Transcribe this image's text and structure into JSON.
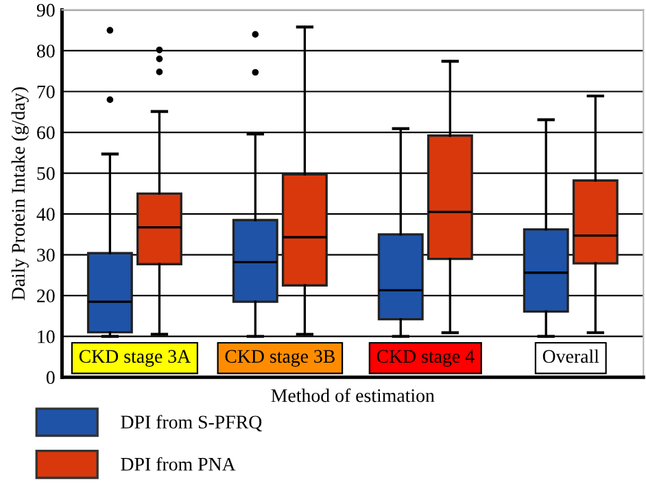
{
  "chart_data": {
    "type": "box",
    "xlabel": "Method of estimation",
    "ylabel": "Daily Protein Intake (g/day)",
    "categories": [
      "CKD stage 3A",
      "CKD stage 3B",
      "CKD stage 4",
      "Overall"
    ],
    "series": [
      {
        "name": "DPI from S-PFRQ",
        "color": "#1f53a8",
        "boxes": [
          {
            "low": 10,
            "q1": 11,
            "median": 18.5,
            "q3": 30.4,
            "high": 54.7,
            "outliers": [
              68,
              85
            ]
          },
          {
            "low": 10,
            "q1": 18.5,
            "median": 28.2,
            "q3": 38.5,
            "high": 59.6,
            "outliers": [
              74.7,
              84
            ]
          },
          {
            "low": 10,
            "q1": 14.2,
            "median": 21.3,
            "q3": 35,
            "high": 60.9
          },
          {
            "low": 10,
            "q1": 16.1,
            "median": 25.6,
            "q3": 36.2,
            "high": 63.1
          }
        ]
      },
      {
        "name": "DPI from PNA",
        "color": "#d9380c",
        "boxes": [
          {
            "low": 10.5,
            "q1": 27.7,
            "median": 36.7,
            "q3": 45,
            "high": 65.1,
            "outliers": [
              74.8,
              78,
              80.2
            ]
          },
          {
            "low": 10.5,
            "q1": 22.5,
            "median": 34.3,
            "q3": 49.7,
            "high": 85.8
          },
          {
            "low": 10.9,
            "q1": 29,
            "median": 40.5,
            "q3": 59.2,
            "high": 77.4
          },
          {
            "low": 10.9,
            "q1": 27.9,
            "median": 34.7,
            "q3": 48.2,
            "high": 68.9
          }
        ]
      }
    ],
    "ylim": [
      0,
      90
    ],
    "yticks": [
      0,
      10,
      20,
      30,
      40,
      50,
      60,
      70,
      80,
      90
    ],
    "grid": "y",
    "legend": "bottom"
  }
}
